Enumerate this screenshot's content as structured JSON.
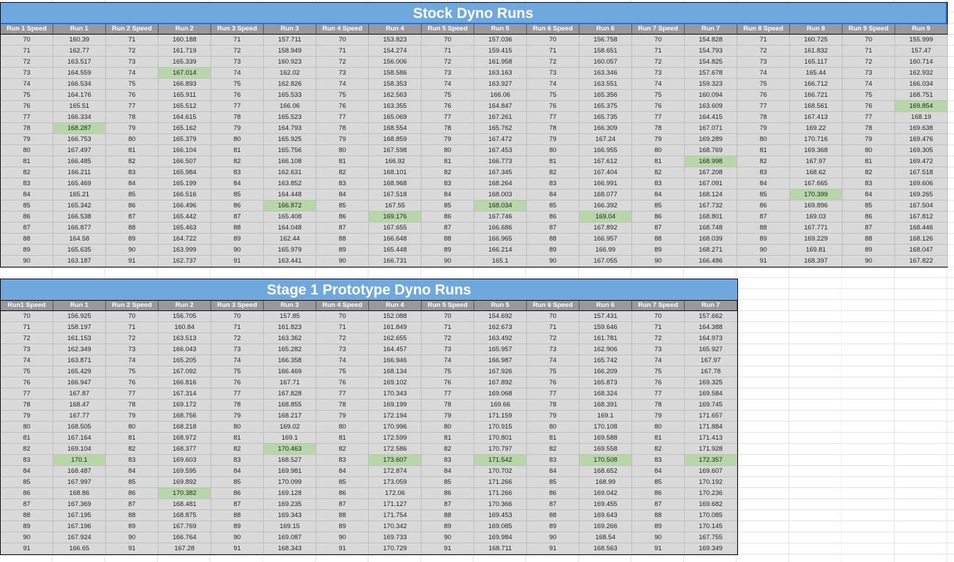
{
  "colors": {
    "title_bg": "#6fa8dc",
    "header_bg": "#999999",
    "cell_bg": "#d9d9d9",
    "highlight": "#b6d7a8"
  },
  "tables": [
    {
      "title": "Stock Dyno Runs",
      "columns": [
        {
          "header": "Run 1 Speed",
          "values": [
            "70",
            "71",
            "72",
            "73",
            "74",
            "75",
            "76",
            "77",
            "78",
            "79",
            "80",
            "81",
            "82",
            "83",
            "84",
            "85",
            "86",
            "87",
            "88",
            "89",
            "90"
          ]
        },
        {
          "header": "Run 1",
          "values": [
            "160.39",
            "162.77",
            "163.517",
            "164.559",
            "166.534",
            "164.176",
            "165.51",
            "166.334",
            "168.287",
            "166.753",
            "167.497",
            "166.485",
            "166.211",
            "165.469",
            "165.21",
            "165.342",
            "166.538",
            "166.877",
            "164.58",
            "165.635",
            "163.187"
          ],
          "highlight_row": 8
        },
        {
          "header": "Run 2 Speed",
          "values": [
            "71",
            "72",
            "73",
            "74",
            "75",
            "76",
            "77",
            "78",
            "79",
            "80",
            "81",
            "82",
            "83",
            "84",
            "85",
            "86",
            "87",
            "88",
            "89",
            "90",
            "91"
          ]
        },
        {
          "header": "Run 2",
          "values": [
            "160.188",
            "161.719",
            "165.339",
            "167.014",
            "166.893",
            "165.911",
            "165.512",
            "164.615",
            "165.162",
            "165.379",
            "166.104",
            "166.507",
            "165.984",
            "165.199",
            "166.516",
            "166.496",
            "165.442",
            "165.463",
            "164.722",
            "163.999",
            "162.737"
          ],
          "highlight_row": 3
        },
        {
          "header": "Run 3 Speed",
          "values": [
            "71",
            "72",
            "73",
            "74",
            "75",
            "76",
            "77",
            "78",
            "79",
            "80",
            "81",
            "82",
            "83",
            "84",
            "85",
            "86",
            "87",
            "88",
            "89",
            "90",
            "91"
          ]
        },
        {
          "header": "Run 3",
          "values": [
            "157.711",
            "158.949",
            "160.923",
            "162.02",
            "162.826",
            "165.533",
            "166.06",
            "165.523",
            "164.793",
            "165.925",
            "165.756",
            "166.108",
            "162.631",
            "163.852",
            "164.448",
            "166.872",
            "165.408",
            "164.048",
            "162.44",
            "165.979",
            "163.441"
          ],
          "highlight_row": 15
        },
        {
          "header": "Run 4 Speed",
          "values": [
            "70",
            "71",
            "72",
            "73",
            "74",
            "75",
            "76",
            "77",
            "78",
            "79",
            "80",
            "81",
            "82",
            "83",
            "84",
            "85",
            "86",
            "87",
            "88",
            "89",
            "90"
          ]
        },
        {
          "header": "Run 4",
          "values": [
            "153.823",
            "154.274",
            "156.006",
            "158.586",
            "158.353",
            "162.563",
            "163.355",
            "165.069",
            "168.554",
            "168.859",
            "167.598",
            "166.92",
            "168.101",
            "168.968",
            "167.518",
            "167.55",
            "169.176",
            "167.655",
            "166.648",
            "165.448",
            "166.731"
          ],
          "highlight_row": 16
        },
        {
          "header": "Run 5 Speed",
          "values": [
            "70",
            "71",
            "72",
            "73",
            "74",
            "75",
            "76",
            "77",
            "78",
            "79",
            "80",
            "81",
            "82",
            "83",
            "84",
            "85",
            "86",
            "87",
            "88",
            "89",
            "90"
          ]
        },
        {
          "header": "Run 5",
          "values": [
            "157.036",
            "159.415",
            "161.958",
            "163.163",
            "163.927",
            "166.06",
            "164.847",
            "167.261",
            "165.762",
            "167.472",
            "167.453",
            "166.773",
            "167.345",
            "168.264",
            "168.003",
            "168.034",
            "167.746",
            "166.686",
            "166.965",
            "166.214",
            "165.1"
          ],
          "highlight_row": 15
        },
        {
          "header": "Run 6 Speed",
          "values": [
            "70",
            "71",
            "72",
            "73",
            "74",
            "75",
            "76",
            "77",
            "78",
            "79",
            "80",
            "81",
            "82",
            "83",
            "84",
            "85",
            "86",
            "87",
            "88",
            "89",
            "90"
          ]
        },
        {
          "header": "Run 6",
          "values": [
            "156.758",
            "158.651",
            "160.057",
            "163.346",
            "163.551",
            "165.356",
            "165.375",
            "165.735",
            "166.309",
            "167.24",
            "166.955",
            "167.612",
            "167.404",
            "166.991",
            "168.077",
            "166.392",
            "169.04",
            "167.892",
            "166.957",
            "166.99",
            "167.055"
          ],
          "highlight_row": 16
        },
        {
          "header": "Run 7 Speed",
          "values": [
            "70",
            "71",
            "72",
            "73",
            "74",
            "75",
            "76",
            "77",
            "78",
            "79",
            "80",
            "81",
            "82",
            "83",
            "84",
            "85",
            "86",
            "87",
            "88",
            "89",
            "90"
          ]
        },
        {
          "header": "Run 7",
          "values": [
            "154.828",
            "154.793",
            "154.825",
            "157.678",
            "159.323",
            "160.094",
            "163.609",
            "164.415",
            "167.071",
            "169.289",
            "168.769",
            "168.998",
            "167.208",
            "167.091",
            "168.124",
            "167.732",
            "168.801",
            "168.748",
            "168.039",
            "168.271",
            "166.486"
          ],
          "highlight_row": 11
        },
        {
          "header": "Run 8 Speed",
          "values": [
            "71",
            "72",
            "73",
            "74",
            "75",
            "76",
            "77",
            "78",
            "79",
            "80",
            "81",
            "82",
            "83",
            "84",
            "85",
            "86",
            "87",
            "88",
            "89",
            "90",
            "91"
          ]
        },
        {
          "header": "Run 8",
          "values": [
            "160.725",
            "161.832",
            "165.117",
            "165.44",
            "166.712",
            "166.721",
            "168.561",
            "167.413",
            "169.22",
            "170.716",
            "169.368",
            "167.97",
            "168.62",
            "167.665",
            "170.399",
            "169.896",
            "169.03",
            "167.771",
            "169.229",
            "169.81",
            "168.397"
          ],
          "highlight_row": 14
        },
        {
          "header": "Run 9 Speed",
          "values": [
            "70",
            "71",
            "72",
            "73",
            "74",
            "75",
            "76",
            "77",
            "78",
            "79",
            "80",
            "81",
            "82",
            "83",
            "84",
            "85",
            "86",
            "87",
            "88",
            "89",
            "90"
          ]
        },
        {
          "header": "Run 9",
          "values": [
            "155.999",
            "157.47",
            "160.714",
            "162.932",
            "166.034",
            "168.751",
            "169.854",
            "168.19",
            "169.638",
            "169.476",
            "169.305",
            "169.472",
            "167.518",
            "169.606",
            "169.265",
            "167.504",
            "167.812",
            "168.446",
            "168.126",
            "168.047",
            "167.822"
          ],
          "highlight_row": 6
        }
      ]
    },
    {
      "title": "Stage 1 Prototype Dyno Runs",
      "columns": [
        {
          "header": "Run1 Speed",
          "values": [
            "70",
            "71",
            "72",
            "73",
            "74",
            "75",
            "76",
            "77",
            "78",
            "79",
            "80",
            "81",
            "82",
            "83",
            "84",
            "85",
            "86",
            "87",
            "88",
            "89",
            "90",
            "91"
          ]
        },
        {
          "header": "Run 1",
          "values": [
            "156.925",
            "158.197",
            "161.153",
            "162.349",
            "163.871",
            "165.429",
            "166.947",
            "167.87",
            "168.47",
            "167.77",
            "168.505",
            "167.164",
            "169.104",
            "170.1",
            "168.487",
            "167.997",
            "168.86",
            "167.369",
            "167.195",
            "167.196",
            "167.924",
            "166.65"
          ],
          "highlight_row": 13
        },
        {
          "header": "Run 2 Speed",
          "values": [
            "70",
            "71",
            "72",
            "73",
            "74",
            "75",
            "76",
            "77",
            "78",
            "79",
            "80",
            "81",
            "82",
            "83",
            "84",
            "85",
            "86",
            "87",
            "88",
            "89",
            "90",
            "91"
          ]
        },
        {
          "header": "Run 2",
          "values": [
            "156.705",
            "160.84",
            "163.513",
            "166.043",
            "165.205",
            "167.092",
            "166.816",
            "167.314",
            "169.172",
            "168.756",
            "168.218",
            "168.972",
            "168.377",
            "169.603",
            "169.595",
            "169.892",
            "170.382",
            "168.481",
            "168.875",
            "167.769",
            "166.764",
            "167.28"
          ],
          "highlight_row": 16
        },
        {
          "header": "Run 3 Speed",
          "values": [
            "70",
            "71",
            "72",
            "73",
            "74",
            "75",
            "76",
            "77",
            "78",
            "79",
            "80",
            "81",
            "82",
            "83",
            "84",
            "85",
            "86",
            "87",
            "88",
            "89",
            "90",
            "91"
          ]
        },
        {
          "header": "Run 3",
          "values": [
            "157.85",
            "161.823",
            "163.362",
            "165.282",
            "166.358",
            "166.469",
            "167.71",
            "167.828",
            "168.855",
            "168.217",
            "169.02",
            "169.1",
            "170.463",
            "168.527",
            "169.981",
            "170.099",
            "169.128",
            "169.235",
            "169.343",
            "169.15",
            "169.087",
            "168.343"
          ],
          "highlight_row": 12
        },
        {
          "header": "Run 4 Speed",
          "values": [
            "70",
            "71",
            "72",
            "73",
            "74",
            "75",
            "76",
            "77",
            "78",
            "79",
            "80",
            "81",
            "82",
            "83",
            "84",
            "85",
            "86",
            "87",
            "88",
            "89",
            "90",
            "91"
          ]
        },
        {
          "header": "Run 4",
          "values": [
            "152.088",
            "161.849",
            "162.655",
            "164.457",
            "166.946",
            "168.134",
            "169.102",
            "170.343",
            "169.199",
            "172.194",
            "170.996",
            "172.599",
            "172.586",
            "173.607",
            "172.874",
            "173.059",
            "172.06",
            "171.127",
            "171.754",
            "170.342",
            "169.733",
            "170.729"
          ],
          "highlight_row": 13
        },
        {
          "header": "Run 5 Speed",
          "values": [
            "70",
            "71",
            "72",
            "73",
            "74",
            "75",
            "76",
            "77",
            "78",
            "79",
            "80",
            "81",
            "82",
            "83",
            "84",
            "85",
            "86",
            "87",
            "88",
            "89",
            "90",
            "91"
          ]
        },
        {
          "header": "Run 5",
          "values": [
            "154.692",
            "162.673",
            "163.492",
            "165.957",
            "166.987",
            "167.926",
            "167.892",
            "169.068",
            "169.66",
            "171.159",
            "170.915",
            "170.801",
            "170.797",
            "171.542",
            "170.702",
            "171.266",
            "171.266",
            "170.366",
            "169.453",
            "169.085",
            "169.984",
            "168.711"
          ],
          "highlight_row": 13
        },
        {
          "header": "Run 6 Speed",
          "values": [
            "70",
            "71",
            "72",
            "73",
            "74",
            "75",
            "76",
            "77",
            "78",
            "79",
            "80",
            "81",
            "82",
            "83",
            "84",
            "85",
            "86",
            "87",
            "88",
            "89",
            "90",
            "91"
          ]
        },
        {
          "header": "Run 6",
          "values": [
            "157.431",
            "159.646",
            "161.781",
            "162.906",
            "165.742",
            "166.209",
            "165.873",
            "168.324",
            "168.391",
            "169.1",
            "170.108",
            "169.588",
            "169.558",
            "170.508",
            "168.652",
            "168.99",
            "169.042",
            "169.455",
            "169.643",
            "169.266",
            "168.54",
            "168.563"
          ],
          "highlight_row": 13
        },
        {
          "header": "Run 7 Speed",
          "values": [
            "70",
            "71",
            "72",
            "73",
            "74",
            "75",
            "76",
            "77",
            "78",
            "79",
            "80",
            "81",
            "82",
            "83",
            "84",
            "85",
            "86",
            "87",
            "88",
            "89",
            "90",
            "91"
          ]
        },
        {
          "header": "Run 7",
          "values": [
            "157.662",
            "164.388",
            "164.973",
            "165.927",
            "167.97",
            "167.78",
            "169.325",
            "169.584",
            "169.745",
            "171.657",
            "171.884",
            "171.413",
            "171.928",
            "172.357",
            "169.607",
            "170.192",
            "170.236",
            "169.682",
            "170.085",
            "170.145",
            "167.755",
            "169.349"
          ],
          "highlight_row": 13
        }
      ]
    }
  ]
}
